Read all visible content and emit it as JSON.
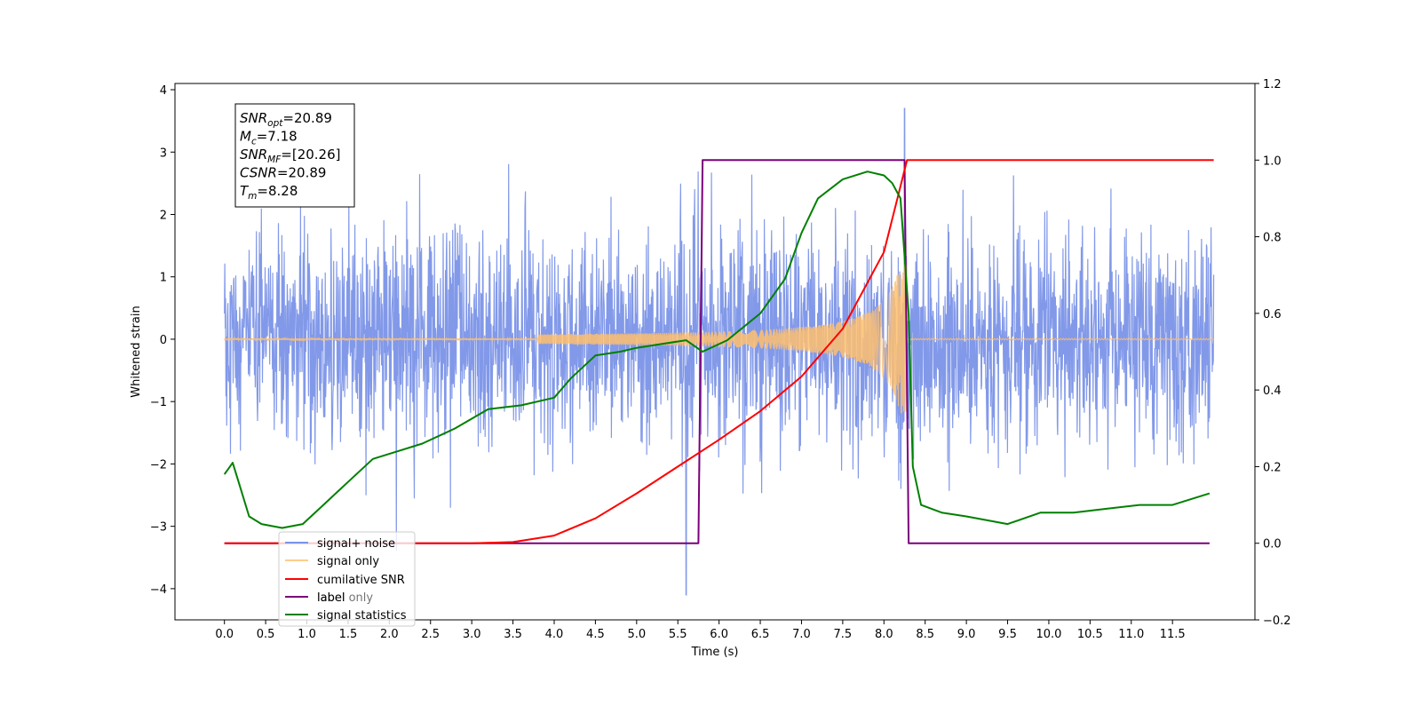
{
  "chart_data": {
    "type": "line",
    "xlabel": "Time (s)",
    "ylabel_left": "Whitened strain",
    "ylabel_right": "",
    "xlim": [
      -0.6,
      12.5
    ],
    "ylim_left": [
      -4.5,
      4.1
    ],
    "ylim_right": [
      -0.2,
      1.2
    ],
    "x_ticks": [
      "0.0",
      "0.5",
      "1.0",
      "1.5",
      "2.0",
      "2.5",
      "3.0",
      "3.5",
      "4.0",
      "4.5",
      "5.0",
      "5.5",
      "6.0",
      "6.5",
      "7.0",
      "7.5",
      "8.0",
      "8.5",
      "9.0",
      "9.5",
      "10.0",
      "10.5",
      "11.0",
      "11.5"
    ],
    "y_ticks_left": [
      "4",
      "3",
      "2",
      "1",
      "0",
      "−1",
      "−2",
      "−3",
      "−4"
    ],
    "y_ticks_right": [
      "1.2",
      "1.0",
      "0.8",
      "0.6",
      "0.4",
      "0.2",
      "0.0",
      "−0.2"
    ],
    "grid": false,
    "legend_position": "lower-left",
    "annotation": {
      "lines": [
        {
          "sym": "SNR",
          "sub": "opt",
          "value": "=20.89"
        },
        {
          "sym": "M",
          "sub": "c",
          "value": "=7.18"
        },
        {
          "sym": "SNR",
          "sub": "MF",
          "value": "=[20.26]"
        },
        {
          "sym": "CSNR",
          "sub": "",
          "value": "=20.89"
        },
        {
          "sym": "T",
          "sub": "m",
          "value": "=8.28"
        }
      ]
    },
    "series": [
      {
        "name": "signal+ noise",
        "color": "#7b94e8",
        "axis": "left",
        "x_range": [
          0.0,
          12.0
        ],
        "approx_std": 0.85,
        "extremes": {
          "max": 3.7,
          "min": -4.1
        }
      },
      {
        "name": "signal only",
        "color": "#ffbf6e",
        "axis": "left",
        "x_range": [
          0.0,
          12.0
        ],
        "envelope_start": 3.8,
        "merger_time": 8.28,
        "peak_amplitude": 1.2
      },
      {
        "name": "cumilative SNR",
        "color": "#ff0000",
        "axis": "right",
        "x": [
          0.0,
          3.0,
          3.5,
          4.0,
          4.5,
          5.0,
          5.5,
          6.0,
          6.5,
          7.0,
          7.5,
          8.0,
          8.28,
          12.0
        ],
        "y": [
          0.0,
          0.0,
          0.003,
          0.02,
          0.065,
          0.13,
          0.2,
          0.27,
          0.345,
          0.435,
          0.56,
          0.76,
          1.0,
          1.0
        ]
      },
      {
        "name": "label",
        "color": "#7b007b",
        "axis": "right",
        "x": [
          0.0,
          5.75,
          5.8,
          8.25,
          8.3,
          11.95
        ],
        "y": [
          0.0,
          0.0,
          1.0,
          1.0,
          0.0,
          0.0
        ]
      },
      {
        "name": "label only",
        "color": "#7b007b",
        "axis": "right",
        "hidden_in_plot": true
      },
      {
        "name": "signal statistics",
        "color": "#008000",
        "axis": "right",
        "x": [
          0.0,
          0.1,
          0.2,
          0.3,
          0.45,
          0.7,
          0.95,
          1.2,
          1.5,
          1.8,
          2.1,
          2.4,
          2.8,
          3.2,
          3.6,
          4.0,
          4.2,
          4.5,
          4.8,
          5.0,
          5.3,
          5.6,
          5.8,
          6.1,
          6.5,
          6.8,
          7.0,
          7.2,
          7.5,
          7.8,
          8.0,
          8.1,
          8.2,
          8.3,
          8.35,
          8.45,
          8.7,
          9.0,
          9.5,
          9.9,
          10.3,
          10.7,
          11.1,
          11.5,
          11.95
        ],
        "y": [
          0.18,
          0.21,
          0.14,
          0.07,
          0.05,
          0.04,
          0.05,
          0.1,
          0.16,
          0.22,
          0.24,
          0.26,
          0.3,
          0.35,
          0.36,
          0.38,
          0.43,
          0.49,
          0.5,
          0.51,
          0.52,
          0.53,
          0.5,
          0.53,
          0.6,
          0.69,
          0.81,
          0.9,
          0.95,
          0.97,
          0.96,
          0.94,
          0.9,
          0.6,
          0.2,
          0.1,
          0.08,
          0.07,
          0.05,
          0.08,
          0.08,
          0.09,
          0.1,
          0.1,
          0.13
        ]
      }
    ]
  }
}
